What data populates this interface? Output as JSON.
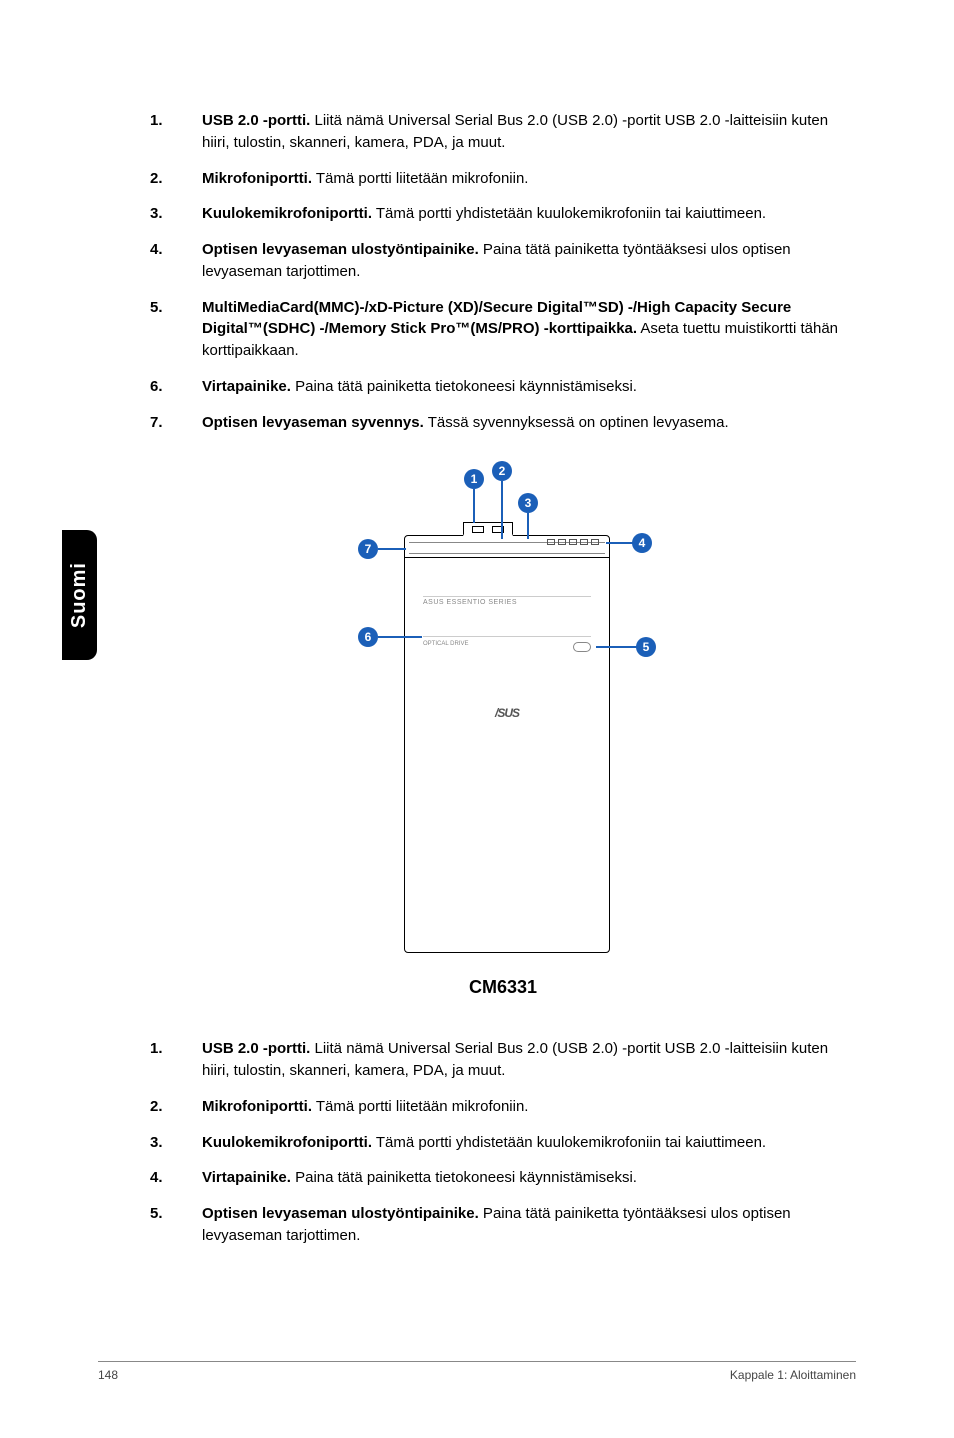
{
  "sideTab": "Suomi",
  "listA": [
    {
      "n": "1.",
      "b": "USB 2.0 -portti.",
      "t": " Liitä nämä Universal Serial Bus 2.0 (USB 2.0) -portit USB 2.0 -laitteisiin kuten hiiri, tulostin, skanneri, kamera, PDA, ja muut."
    },
    {
      "n": "2.",
      "b": "Mikrofoniportti.",
      "t": " Tämä portti liitetään mikrofoniin."
    },
    {
      "n": "3.",
      "b": "Kuulokemikrofoniportti.",
      "t": " Tämä portti yhdistetään kuulokemikrofoniin tai kaiuttimeen."
    },
    {
      "n": "4.",
      "b": "Optisen levyaseman ulostyöntipainike.",
      "t": " Paina tätä painiketta työntääksesi ulos optisen levyaseman tarjottimen."
    },
    {
      "n": "5.",
      "b": "MultiMediaCard(MMC)-/xD-Picture (XD)/Secure Digital™SD) -/High Capacity Secure Digital™(SDHC) -/Memory Stick Pro™(MS/PRO) -korttipaikka.",
      "t": " Aseta tuettu muistikortti tähän korttipaikkaan."
    },
    {
      "n": "6.",
      "b": "Virtapainike.",
      "t": " Paina tätä painiketta tietokoneesi käynnistämiseksi."
    },
    {
      "n": "7.",
      "b": "Optisen levyaseman syvennys.",
      "t": " Tässä syvennyksessä on optinen levyasema."
    }
  ],
  "model": "CM6331",
  "deviceLabel": "ASUS ESSENTIO SERIES",
  "driveLabel": "OPTICAL DRIVE",
  "logo": "/SUS",
  "callouts": {
    "c1": "1",
    "c2": "2",
    "c3": "3",
    "c4": "4",
    "c5": "5",
    "c6": "6",
    "c7": "7"
  },
  "listB": [
    {
      "n": "1.",
      "b": "USB 2.0 -portti.",
      "t": " Liitä nämä Universal Serial Bus 2.0 (USB 2.0) -portit USB 2.0 -laitteisiin kuten hiiri, tulostin, skanneri, kamera, PDA, ja muut."
    },
    {
      "n": "2.",
      "b": "Mikrofoniportti.",
      "t": " Tämä portti liitetään mikrofoniin."
    },
    {
      "n": "3.",
      "b": "Kuulokemikrofoniportti.",
      "t": " Tämä portti yhdistetään kuulokemikrofoniin tai kaiuttimeen."
    },
    {
      "n": "4.",
      "b": "Virtapainike.",
      "t": " Paina tätä painiketta tietokoneesi käynnistämiseksi."
    },
    {
      "n": "5.",
      "b": "Optisen levyaseman ulostyöntipainike.",
      "t": " Paina tätä painiketta työntääksesi ulos optisen levyaseman tarjottimen."
    }
  ],
  "footer": {
    "page": "148",
    "chapter": "Kappale 1: Aloittaminen"
  }
}
